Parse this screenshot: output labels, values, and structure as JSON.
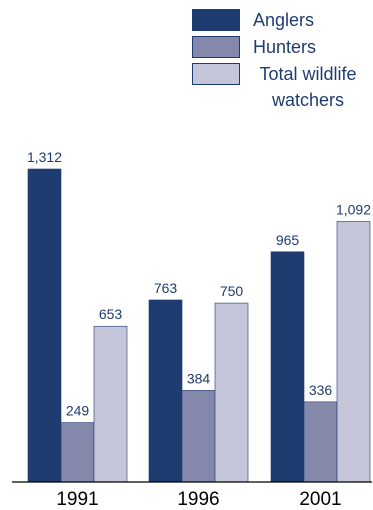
{
  "chart_data": {
    "type": "bar",
    "categories": [
      "1991",
      "1996",
      "2001"
    ],
    "series": [
      {
        "name": "Anglers",
        "values": [
          1312,
          763,
          965
        ],
        "labels": [
          "1,312",
          "763",
          "965"
        ],
        "color": "#1f3c70"
      },
      {
        "name": "Hunters",
        "values": [
          249,
          384,
          336
        ],
        "labels": [
          "249",
          "384",
          "336"
        ],
        "color": "#8489ac"
      },
      {
        "name": "Total wildlife watchers",
        "values": [
          653,
          750,
          1092
        ],
        "labels": [
          "653",
          "750",
          "1,092"
        ],
        "color": "#c4c5d8"
      }
    ],
    "title": "",
    "xlabel": "",
    "ylabel": "",
    "ylim": [
      0,
      1400
    ],
    "grid": false,
    "legend_placement": "top-right"
  },
  "legend": {
    "items": [
      {
        "label": "Anglers"
      },
      {
        "label": "Hunters"
      },
      {
        "label": "Total wildlife watchers"
      }
    ]
  }
}
